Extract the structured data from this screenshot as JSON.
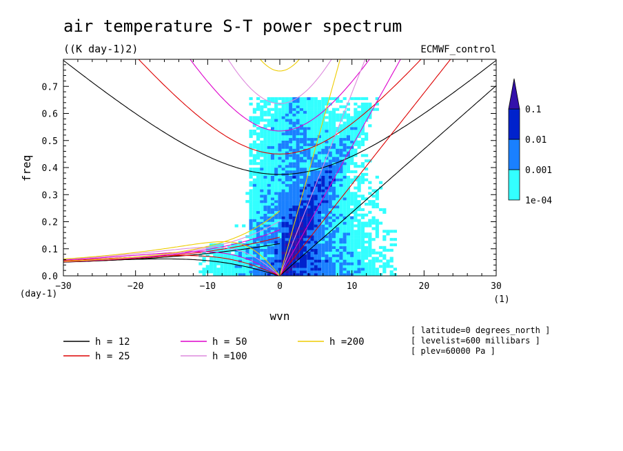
{
  "chart_data": {
    "type": "heatmap",
    "title": "air temperature S-T power spectrum",
    "units": "((K day-1)2)",
    "source": "ECMWF_control",
    "xlabel": "wvn",
    "ylabel": "freq",
    "x_unit": "(1)",
    "y_unit": "(day-1)",
    "xlim": [
      -30,
      30
    ],
    "ylim": [
      0,
      0.8
    ],
    "x_ticks": [
      "-30",
      "-20",
      "-10",
      "0",
      "10",
      "20",
      "30"
    ],
    "y_ticks": [
      "0.0",
      "0.1",
      "0.2",
      "0.3",
      "0.4",
      "0.5",
      "0.6",
      "0.7"
    ],
    "colorbar": {
      "levels": [
        "1e-04",
        "0.001",
        "0.01",
        "0.1"
      ],
      "colors": [
        "#33ffff",
        "#1a80ff",
        "#0022cc",
        "#3311aa"
      ]
    },
    "series": [
      {
        "name": "h = 12",
        "h": 12,
        "color": "#000000"
      },
      {
        "name": "h = 25",
        "h": 25,
        "color": "#dd0000"
      },
      {
        "name": "h = 50",
        "h": 50,
        "color": "#dd00cc"
      },
      {
        "name": "h =100",
        "h": 100,
        "color": "#dd88dd"
      },
      {
        "name": "h =200",
        "h": 200,
        "color": "#eecc00"
      }
    ],
    "annotations": [
      "[ latitude=0 degrees_north ]",
      "[ levelist=600 millibars ]",
      "[ plev=60000 Pa ]"
    ]
  }
}
